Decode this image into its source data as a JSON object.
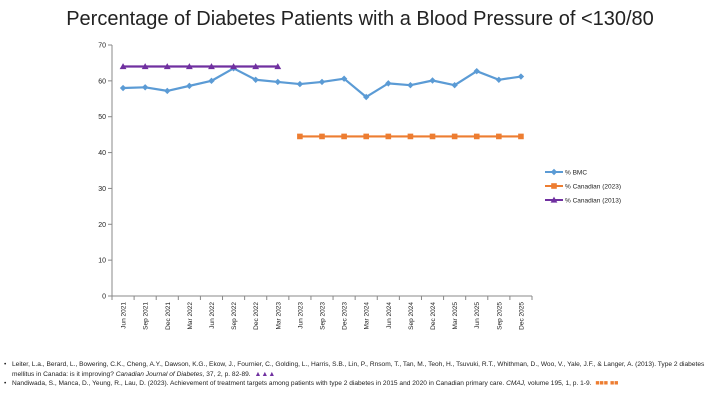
{
  "slide": {
    "title": "Percentage of Diabetes Patients with a Blood Pressure of <130/80"
  },
  "chart_data": {
    "type": "line",
    "title": "Percentage of Diabetes Patients with a Blood Pressure of <130/80",
    "xlabel": "",
    "ylabel": "",
    "ylim": [
      0,
      70
    ],
    "yticks": [
      0,
      10,
      20,
      30,
      40,
      50,
      60,
      70
    ],
    "grid": false,
    "legend_position": "right",
    "categories": [
      "Jun 2021",
      "Sep 2021",
      "Dec 2021",
      "Mar 2022",
      "Jun 2022",
      "Sep 2022",
      "Dec 2022",
      "Mar 2023",
      "Jun 2023",
      "Sep 2023",
      "Dec 2023",
      "Mar 2024",
      "Jun 2024",
      "Sep 2024",
      "Dec 2024",
      "Mar 2025",
      "Jun 2025",
      "Sep 2025",
      "Dec 2025"
    ],
    "series": [
      {
        "name": "% BMC",
        "color": "#5b9bd5",
        "marker": "diamond",
        "values": [
          58.0,
          58.2,
          57.2,
          58.6,
          60.0,
          63.5,
          60.3,
          59.7,
          59.1,
          59.7,
          60.6,
          55.5,
          59.3,
          58.8,
          60.1,
          58.8,
          62.7,
          60.3,
          61.2
        ]
      },
      {
        "name": "% Canadian (2023)",
        "color": "#ed7d31",
        "marker": "square",
        "values": [
          null,
          null,
          null,
          null,
          null,
          null,
          null,
          null,
          44.5,
          44.5,
          44.5,
          44.5,
          44.5,
          44.5,
          44.5,
          44.5,
          44.5,
          44.5,
          44.5
        ]
      },
      {
        "name": "% Canadian (2013)",
        "color": "#7030a0",
        "marker": "triangle",
        "values": [
          64.0,
          64.0,
          64.0,
          64.0,
          64.0,
          64.0,
          64.0,
          64.0,
          null,
          null,
          null,
          null,
          null,
          null,
          null,
          null,
          null,
          null,
          null
        ]
      }
    ]
  },
  "references": [
    {
      "bullet": "•",
      "before": "Leiter, L.a., Berard, L., Bowering, C.K., Cheng, A.Y., Dawson, K.G., Ekow, J., Fournier, C., Golding, L., Harris, S.B., Lin, P., Rnsom, T., Tan, M., Teoh, H., Tsuvuki, R.T., Whithman, D., Woo, V., Yale, J.F., & Langer, A. (2013). Type 2 diabetes mellitus in Canada: is it improving? ",
      "journal": "Canadian Journal of Diabetes,",
      "after": " 37, 2, p. 82-89. ",
      "swatch": "▲▲▲",
      "swatch_color": "#7030a0"
    },
    {
      "bullet": "•",
      "before": "Nandiwada, S., Manca, D., Yeung, R., Lau, D. (2023). Achievement of treatment targets among patients with type 2 diabetes in 2015 and 2020 in Canadian primary care. ",
      "journal": "CMAJ,",
      "after": " volume 195, 1, p. 1-9. ",
      "swatch": "■■■ ■■",
      "swatch_color": "#ed7d31"
    }
  ]
}
